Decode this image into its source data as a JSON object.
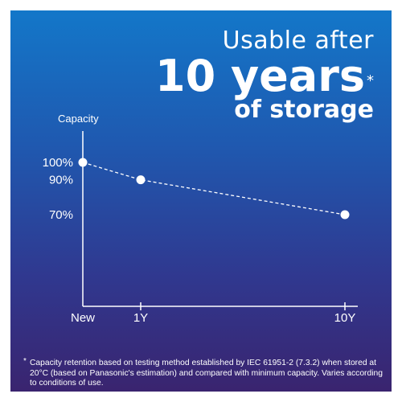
{
  "headline": {
    "line1": "Usable after",
    "line2": "10 years",
    "line2_mark": "*",
    "line3": "of storage"
  },
  "chart_data": {
    "type": "line",
    "ylabel": "Capacity",
    "x": [
      "New",
      "1Y",
      "10Y"
    ],
    "y_ticks": [
      "100%",
      "90%",
      "70%"
    ],
    "series": [
      {
        "values": [
          100,
          90,
          70
        ]
      }
    ],
    "ylim": [
      0,
      100
    ],
    "line_style": "dashed",
    "marker": "circle",
    "grid": false,
    "colors": {
      "line": "#ffffff",
      "axis": "#ffffff"
    }
  },
  "footnote": {
    "mark": "*",
    "text": "Capacity retention based on testing method established by IEC 61951-2 (7.3.2) when stored at 20°C (based on Panasonic's estimation) and compared with minimum capacity. Varies according to conditions of use."
  }
}
